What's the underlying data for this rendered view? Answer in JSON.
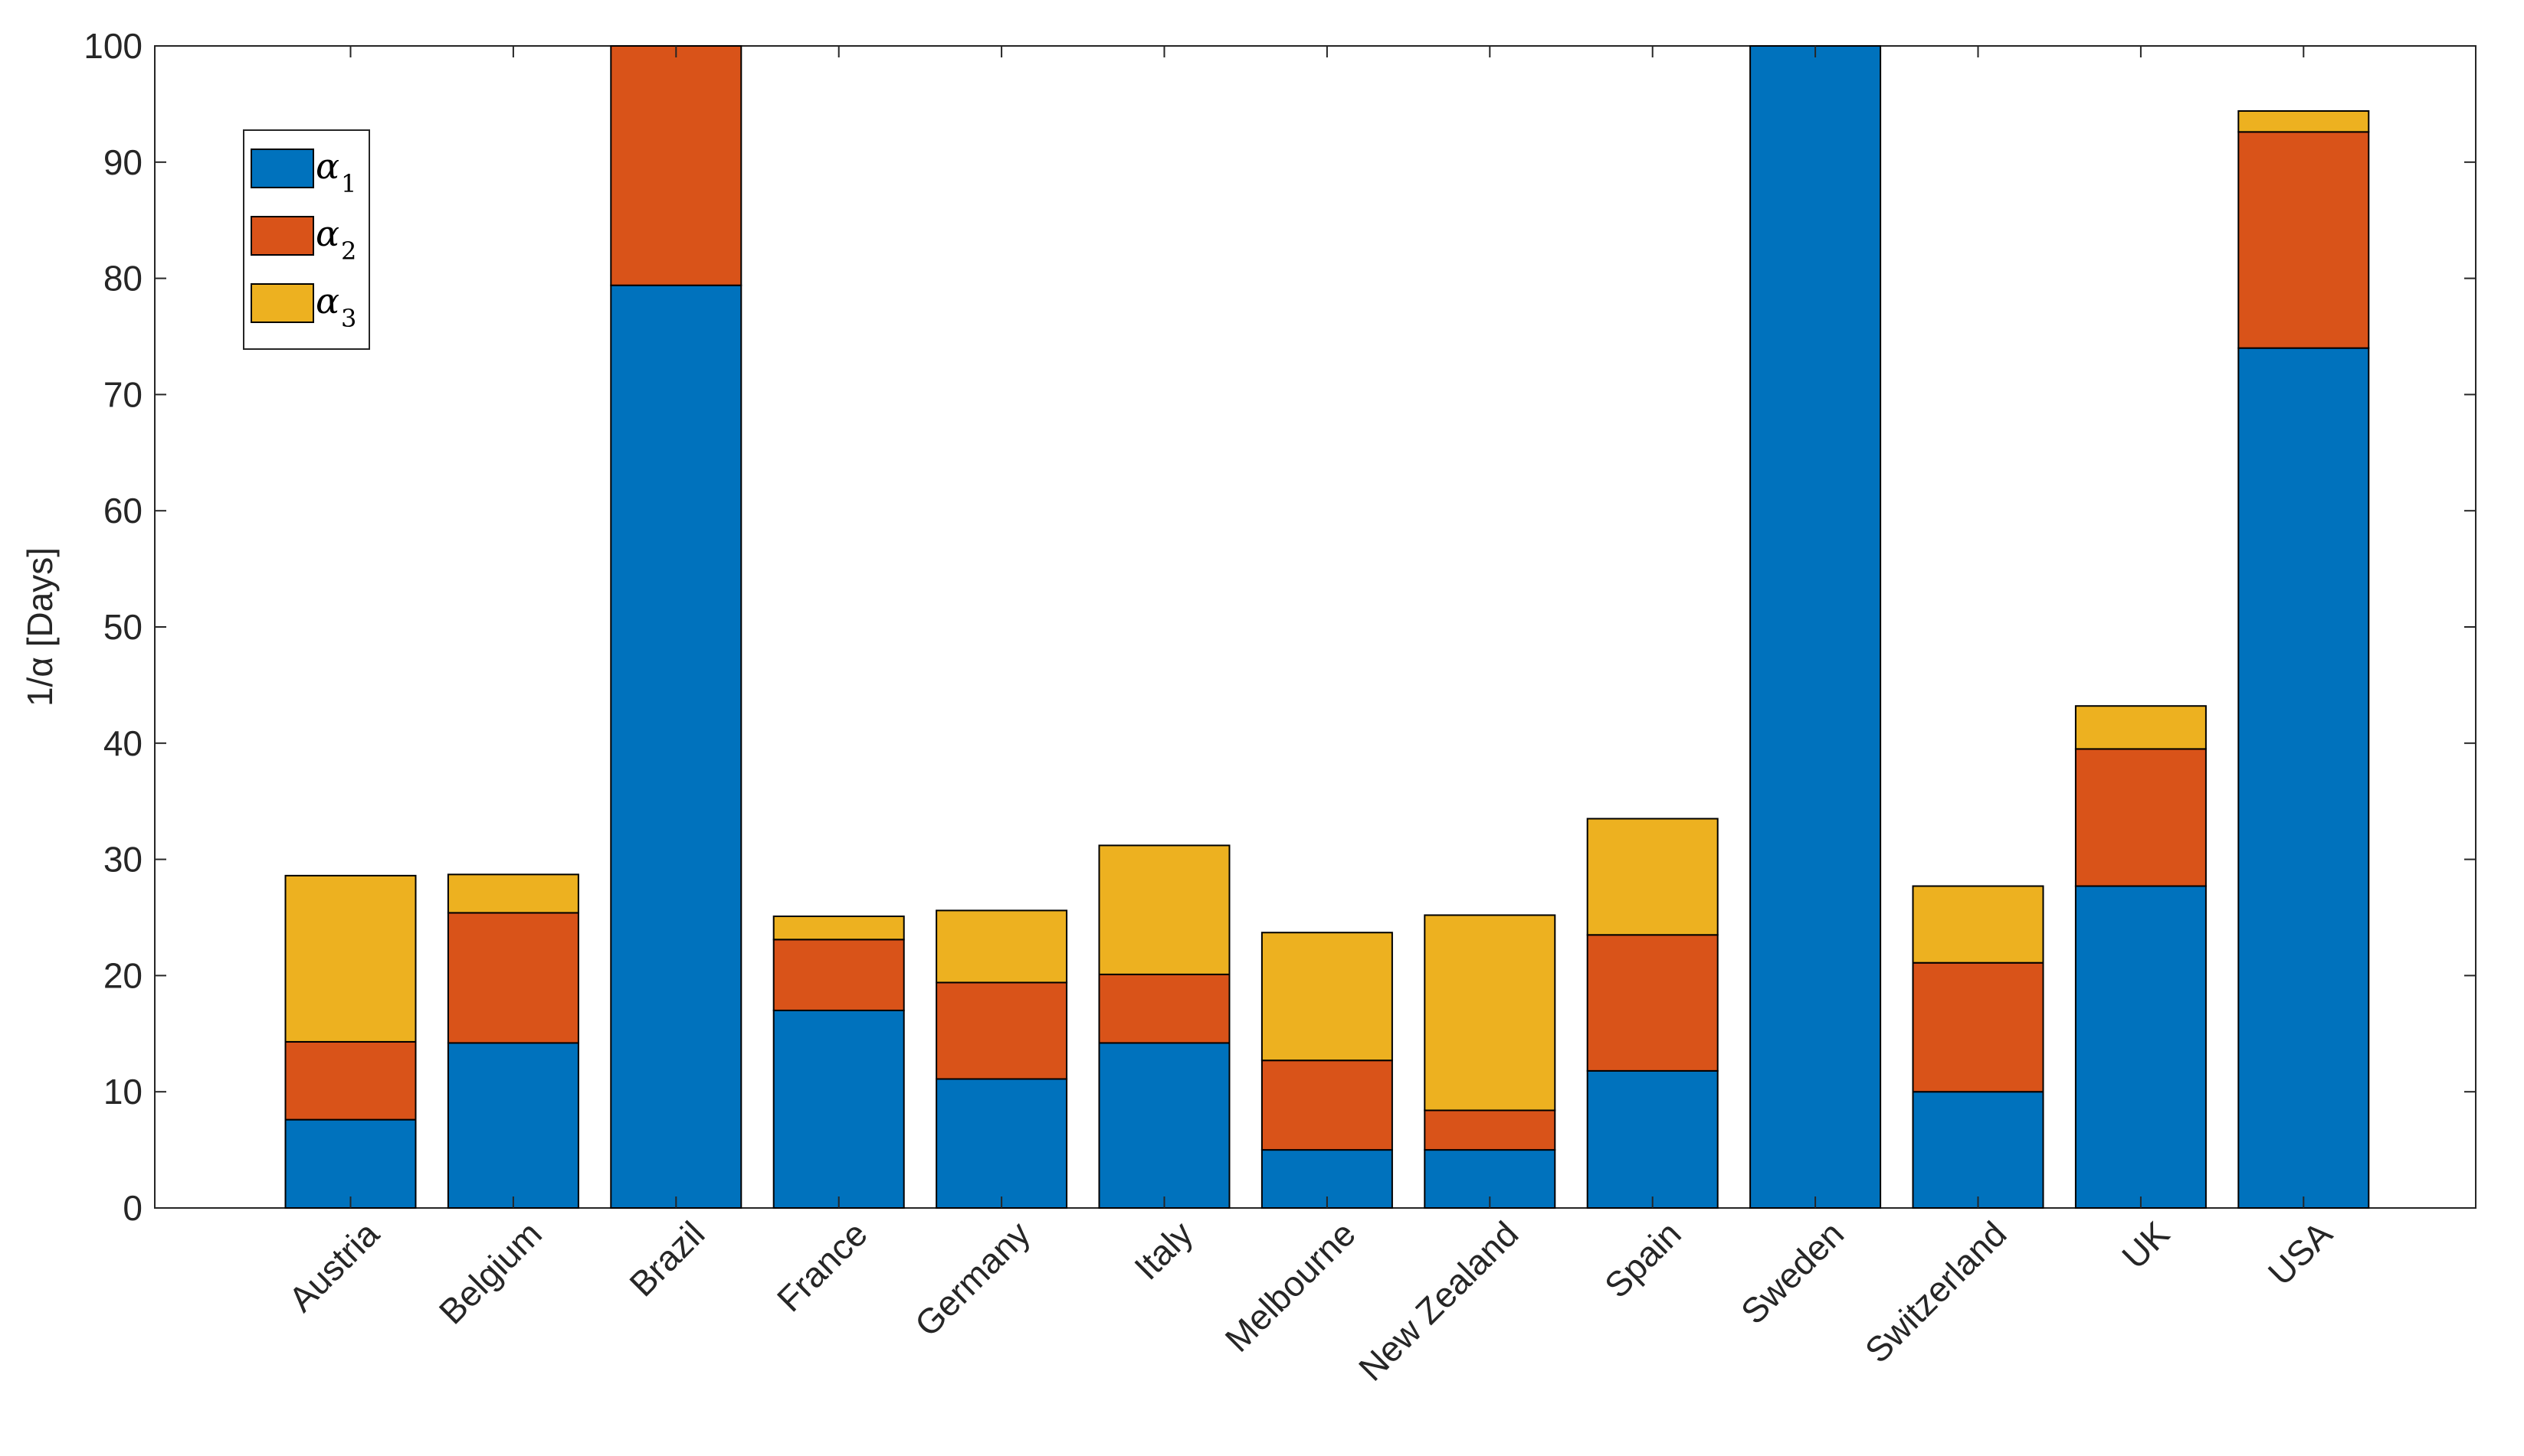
{
  "chart_data": {
    "type": "bar",
    "stacked": true,
    "categories": [
      "Austria",
      "Belgium",
      "Brazil",
      "France",
      "Germany",
      "Italy",
      "Melbourne",
      "New Zealand",
      "Spain",
      "Sweden",
      "Switzerland",
      "UK",
      "USA"
    ],
    "series": [
      {
        "name": "α1",
        "symbol": "α",
        "sub": "1",
        "color": "#0072BD",
        "values": [
          7.6,
          14.2,
          79.4,
          17.0,
          11.1,
          14.2,
          5.0,
          5.0,
          11.8,
          100,
          10.0,
          27.7,
          74.0
        ]
      },
      {
        "name": "α2",
        "symbol": "α",
        "sub": "2",
        "color": "#D95319",
        "values": [
          6.7,
          11.2,
          20.6,
          6.1,
          8.3,
          5.9,
          7.7,
          3.4,
          11.7,
          0,
          11.1,
          11.8,
          18.6
        ]
      },
      {
        "name": "α3",
        "symbol": "α",
        "sub": "3",
        "color": "#EDB120",
        "values": [
          14.3,
          3.3,
          0,
          2.0,
          6.2,
          11.1,
          11.0,
          16.8,
          10.0,
          0,
          6.6,
          3.7,
          1.8
        ]
      }
    ],
    "ylabel": "1/α [Days]",
    "xlabel": "",
    "ylim": [
      0,
      100
    ],
    "yticks": [
      "0",
      "10",
      "20",
      "30",
      "40",
      "50",
      "60",
      "70",
      "80",
      "90",
      "100"
    ],
    "legend_position": "top-left",
    "grid": false
  }
}
